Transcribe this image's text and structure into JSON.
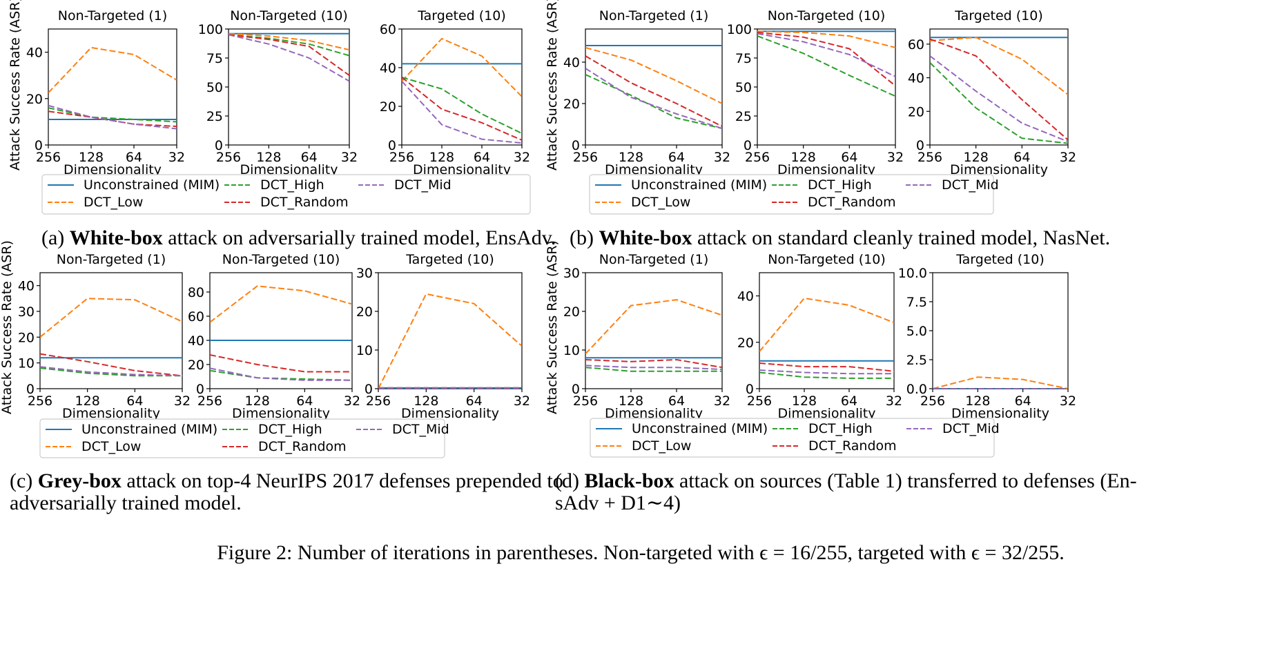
{
  "colors": {
    "Unconstrained (MIM)": "#1f77b4",
    "DCT_Low": "#ff7f0e",
    "DCT_High": "#2ca02c",
    "DCT_Random": "#d62728",
    "DCT_Mid": "#9467bd"
  },
  "legend": {
    "items": [
      "Unconstrained (MIM)",
      "DCT_High",
      "DCT_Mid",
      "DCT_Low",
      "DCT_Random"
    ],
    "dashed": {
      "Unconstrained (MIM)": false,
      "DCT_High": true,
      "DCT_Mid": true,
      "DCT_Low": true,
      "DCT_Random": true
    }
  },
  "captions": {
    "a": [
      {
        "t": "(a) ",
        "b": false
      },
      {
        "t": "White-box",
        "b": true
      },
      {
        "t": " attack on adversarially trained model, EnsAdv.",
        "b": false
      }
    ],
    "b": [
      {
        "t": "(b) ",
        "b": false
      },
      {
        "t": "White-box",
        "b": true
      },
      {
        "t": " attack on standard cleanly trained model, NasNet.",
        "b": false
      }
    ],
    "c1": [
      {
        "t": "(c) ",
        "b": false
      },
      {
        "t": "Grey-box",
        "b": true
      },
      {
        "t": " attack on top-4 NeurIPS 2017 defenses prepended to",
        "b": false
      }
    ],
    "c2": [
      {
        "t": "adversarially trained model.",
        "b": false
      }
    ],
    "d1": [
      {
        "t": "(d) ",
        "b": false
      },
      {
        "t": "Black-box",
        "b": true
      },
      {
        "t": " attack on sources (Table 1) transferred to defenses (En-",
        "b": false
      }
    ],
    "d2": [
      {
        "t": "sAdv + D1∼4)",
        "b": false
      }
    ]
  },
  "figure_caption": "Figure 2: Number of iterations in parentheses. Non-targeted with ϵ = 16/255, targeted with ϵ = 32/255.",
  "chart_data": [
    {
      "group": "a",
      "type": "line",
      "title": "Non-Targeted (1)",
      "xlabel": "Dimensionality",
      "ylabel": "Attack Success Rate (ASR)",
      "categories": [
        "256",
        "128",
        "64",
        "32"
      ],
      "ylim": [
        0,
        50
      ],
      "yticks": [
        0,
        20,
        40
      ],
      "yticklabels": [
        "0",
        "20",
        "40"
      ],
      "series": [
        {
          "name": "Unconstrained (MIM)",
          "values": [
            11,
            11,
            11,
            11
          ]
        },
        {
          "name": "DCT_Low",
          "values": [
            22.5,
            42,
            39,
            28
          ]
        },
        {
          "name": "DCT_High",
          "values": [
            16,
            12,
            11,
            10
          ]
        },
        {
          "name": "DCT_Random",
          "values": [
            14.5,
            12,
            9,
            8
          ]
        },
        {
          "name": "DCT_Mid",
          "values": [
            17,
            12,
            9,
            7
          ]
        }
      ]
    },
    {
      "group": "a",
      "type": "line",
      "title": "Non-Targeted (10)",
      "xlabel": "Dimensionality",
      "ylabel": "",
      "categories": [
        "256",
        "128",
        "64",
        "32"
      ],
      "ylim": [
        0,
        100
      ],
      "yticks": [
        0,
        25,
        50,
        75,
        100
      ],
      "yticklabels": [
        "0",
        "25",
        "50",
        "75",
        "100"
      ],
      "series": [
        {
          "name": "Unconstrained (MIM)",
          "values": [
            96,
            96,
            96,
            96
          ]
        },
        {
          "name": "DCT_Low",
          "values": [
            96,
            94,
            90,
            82
          ]
        },
        {
          "name": "DCT_High",
          "values": [
            95,
            92,
            87,
            77
          ]
        },
        {
          "name": "DCT_Random",
          "values": [
            95,
            91,
            85,
            60
          ]
        },
        {
          "name": "DCT_Mid",
          "values": [
            95,
            87,
            75,
            55
          ]
        }
      ]
    },
    {
      "group": "a",
      "type": "line",
      "title": "Targeted (10)",
      "xlabel": "Dimensionality",
      "ylabel": "",
      "categories": [
        "256",
        "128",
        "64",
        "32"
      ],
      "ylim": [
        0,
        60
      ],
      "yticks": [
        0,
        20,
        40,
        60
      ],
      "yticklabels": [
        "0",
        "20",
        "40",
        "60"
      ],
      "series": [
        {
          "name": "Unconstrained (MIM)",
          "values": [
            42,
            42,
            42,
            42
          ]
        },
        {
          "name": "DCT_Low",
          "values": [
            33,
            55,
            46,
            25
          ]
        },
        {
          "name": "DCT_High",
          "values": [
            35,
            29,
            16,
            6
          ]
        },
        {
          "name": "DCT_Random",
          "values": [
            35,
            18.5,
            11.5,
            2.5
          ]
        },
        {
          "name": "DCT_Mid",
          "values": [
            33,
            10.5,
            3,
            1
          ]
        }
      ]
    },
    {
      "group": "b",
      "type": "line",
      "title": "Non-Targeted (1)",
      "xlabel": "Dimensionality",
      "ylabel": "Attack Success Rate (ASR)",
      "categories": [
        "256",
        "128",
        "64",
        "32"
      ],
      "ylim": [
        0,
        56
      ],
      "yticks": [
        0,
        20,
        40
      ],
      "yticklabels": [
        "0",
        "20",
        "40"
      ],
      "series": [
        {
          "name": "Unconstrained (MIM)",
          "values": [
            48,
            48,
            48,
            48
          ]
        },
        {
          "name": "DCT_Low",
          "values": [
            47,
            41,
            31,
            20
          ]
        },
        {
          "name": "DCT_High",
          "values": [
            34,
            24,
            13,
            8
          ]
        },
        {
          "name": "DCT_Random",
          "values": [
            43,
            30,
            20,
            9
          ]
        },
        {
          "name": "DCT_Mid",
          "values": [
            37,
            23,
            15,
            8
          ]
        }
      ]
    },
    {
      "group": "b",
      "type": "line",
      "title": "Non-Targeted (10)",
      "xlabel": "Dimensionality",
      "ylabel": "",
      "categories": [
        "256",
        "128",
        "64",
        "32"
      ],
      "ylim": [
        0,
        100
      ],
      "yticks": [
        0,
        25,
        50,
        75,
        100
      ],
      "yticklabels": [
        "0",
        "25",
        "50",
        "75",
        "100"
      ],
      "series": [
        {
          "name": "Unconstrained (MIM)",
          "values": [
            98,
            98,
            98,
            98
          ]
        },
        {
          "name": "DCT_Low",
          "values": [
            98,
            97,
            94,
            84
          ]
        },
        {
          "name": "DCT_High",
          "values": [
            94,
            79,
            60,
            42
          ]
        },
        {
          "name": "DCT_Random",
          "values": [
            97,
            93,
            83,
            51
          ]
        },
        {
          "name": "DCT_Mid",
          "values": [
            96,
            89,
            78,
            59
          ]
        }
      ]
    },
    {
      "group": "b",
      "type": "line",
      "title": "Targeted (10)",
      "xlabel": "Dimensionality",
      "ylabel": "",
      "categories": [
        "256",
        "128",
        "64",
        "32"
      ],
      "ylim": [
        0,
        69
      ],
      "yticks": [
        0,
        20,
        40,
        60
      ],
      "yticklabels": [
        "0",
        "20",
        "40",
        "60"
      ],
      "series": [
        {
          "name": "Unconstrained (MIM)",
          "values": [
            64,
            64,
            64,
            64
          ]
        },
        {
          "name": "DCT_Low",
          "values": [
            62,
            64,
            51,
            30
          ]
        },
        {
          "name": "DCT_High",
          "values": [
            49,
            22,
            4,
            1
          ]
        },
        {
          "name": "DCT_Random",
          "values": [
            63,
            53,
            27,
            3
          ]
        },
        {
          "name": "DCT_Mid",
          "values": [
            53,
            32,
            13,
            2
          ]
        }
      ]
    },
    {
      "group": "c",
      "type": "line",
      "title": "Non-Targeted (1)",
      "xlabel": "Dimensionality",
      "ylabel": "Attack Success Rate (ASR)",
      "categories": [
        "256",
        "128",
        "64",
        "32"
      ],
      "ylim": [
        0,
        45
      ],
      "yticks": [
        0,
        10,
        20,
        30,
        40
      ],
      "yticklabels": [
        "0",
        "10",
        "20",
        "30",
        "40"
      ],
      "series": [
        {
          "name": "Unconstrained (MIM)",
          "values": [
            12,
            12,
            12,
            12
          ]
        },
        {
          "name": "DCT_Low",
          "values": [
            20,
            35,
            34.5,
            26
          ]
        },
        {
          "name": "DCT_High",
          "values": [
            8,
            6,
            5,
            5
          ]
        },
        {
          "name": "DCT_Random",
          "values": [
            13.5,
            10.5,
            7,
            5
          ]
        },
        {
          "name": "DCT_Mid",
          "values": [
            8.5,
            6.5,
            5.5,
            5
          ]
        }
      ]
    },
    {
      "group": "c",
      "type": "line",
      "title": "Non-Targeted (10)",
      "xlabel": "Dimensionality",
      "ylabel": "",
      "categories": [
        "256",
        "128",
        "64",
        "32"
      ],
      "ylim": [
        0,
        96
      ],
      "yticks": [
        0,
        20,
        40,
        60,
        80
      ],
      "yticklabels": [
        "0",
        "20",
        "40",
        "60",
        "80"
      ],
      "series": [
        {
          "name": "Unconstrained (MIM)",
          "values": [
            40,
            40,
            40,
            40
          ]
        },
        {
          "name": "DCT_Low",
          "values": [
            55,
            85,
            81,
            70
          ]
        },
        {
          "name": "DCT_High",
          "values": [
            15,
            9,
            8,
            7
          ]
        },
        {
          "name": "DCT_Random",
          "values": [
            28,
            20,
            14,
            14
          ]
        },
        {
          "name": "DCT_Mid",
          "values": [
            17,
            9,
            7,
            7
          ]
        }
      ]
    },
    {
      "group": "c",
      "type": "line",
      "title": "Targeted (10)",
      "xlabel": "Dimensionality",
      "ylabel": "",
      "categories": [
        "256",
        "128",
        "64",
        "32"
      ],
      "ylim": [
        0,
        30
      ],
      "yticks": [
        0,
        10,
        20,
        30
      ],
      "yticklabels": [
        "0",
        "10",
        "20",
        "30"
      ],
      "series": [
        {
          "name": "Unconstrained (MIM)",
          "values": [
            0.2,
            0.2,
            0.2,
            0.2
          ]
        },
        {
          "name": "DCT_Low",
          "values": [
            0,
            24.5,
            22,
            11
          ]
        },
        {
          "name": "DCT_High",
          "values": [
            0.2,
            0.2,
            0.2,
            0.2
          ]
        },
        {
          "name": "DCT_Random",
          "values": [
            0.2,
            0.2,
            0.2,
            0.2
          ]
        },
        {
          "name": "DCT_Mid",
          "values": [
            0.2,
            0.2,
            0.2,
            0.2
          ]
        }
      ]
    },
    {
      "group": "d",
      "type": "line",
      "title": "Non-Targeted (1)",
      "xlabel": "Dimensionality",
      "ylabel": "Attack Success Rate (ASR)",
      "categories": [
        "256",
        "128",
        "64",
        "32"
      ],
      "ylim": [
        0,
        30
      ],
      "yticks": [
        0,
        10,
        20,
        30
      ],
      "yticklabels": [
        "0",
        "10",
        "20",
        "30"
      ],
      "series": [
        {
          "name": "Unconstrained (MIM)",
          "values": [
            8,
            8,
            8,
            8
          ]
        },
        {
          "name": "DCT_Low",
          "values": [
            9,
            21.5,
            23,
            19
          ]
        },
        {
          "name": "DCT_High",
          "values": [
            5.5,
            4.5,
            4.5,
            4.5
          ]
        },
        {
          "name": "DCT_Random",
          "values": [
            7.5,
            7,
            7.5,
            5.5
          ]
        },
        {
          "name": "DCT_Mid",
          "values": [
            6,
            5.5,
            5.5,
            5
          ]
        }
      ]
    },
    {
      "group": "d",
      "type": "line",
      "title": "Non-Targeted (10)",
      "xlabel": "Dimensionality",
      "ylabel": "",
      "categories": [
        "256",
        "128",
        "64",
        "32"
      ],
      "ylim": [
        0,
        50
      ],
      "yticks": [
        0,
        20,
        40
      ],
      "yticklabels": [
        "0",
        "20",
        "40"
      ],
      "series": [
        {
          "name": "Unconstrained (MIM)",
          "values": [
            12,
            12,
            12,
            12
          ]
        },
        {
          "name": "DCT_Low",
          "values": [
            16,
            39,
            36,
            28.5
          ]
        },
        {
          "name": "DCT_High",
          "values": [
            7,
            5,
            4.5,
            4.5
          ]
        },
        {
          "name": "DCT_Random",
          "values": [
            11,
            9.5,
            9.5,
            7.5
          ]
        },
        {
          "name": "DCT_Mid",
          "values": [
            8,
            7,
            6.5,
            6.5
          ]
        }
      ]
    },
    {
      "group": "d",
      "type": "line",
      "title": "Targeted (10)",
      "xlabel": "Dimensionality",
      "ylabel": "",
      "categories": [
        "256",
        "128",
        "64",
        "32"
      ],
      "ylim": [
        0,
        10
      ],
      "yticks": [
        0,
        2.5,
        5,
        7.5,
        10
      ],
      "yticklabels": [
        "0.0",
        "2.5",
        "5.0",
        "7.5",
        "10.0"
      ],
      "series": [
        {
          "name": "Unconstrained (MIM)",
          "values": [
            0,
            0,
            0,
            0
          ]
        },
        {
          "name": "DCT_Low",
          "values": [
            0,
            1,
            0.8,
            0
          ]
        },
        {
          "name": "DCT_High",
          "values": [
            0,
            0,
            0,
            0
          ]
        },
        {
          "name": "DCT_Random",
          "values": [
            0,
            0,
            0,
            0
          ]
        },
        {
          "name": "DCT_Mid",
          "values": [
            0,
            0,
            0,
            0
          ]
        }
      ]
    }
  ]
}
